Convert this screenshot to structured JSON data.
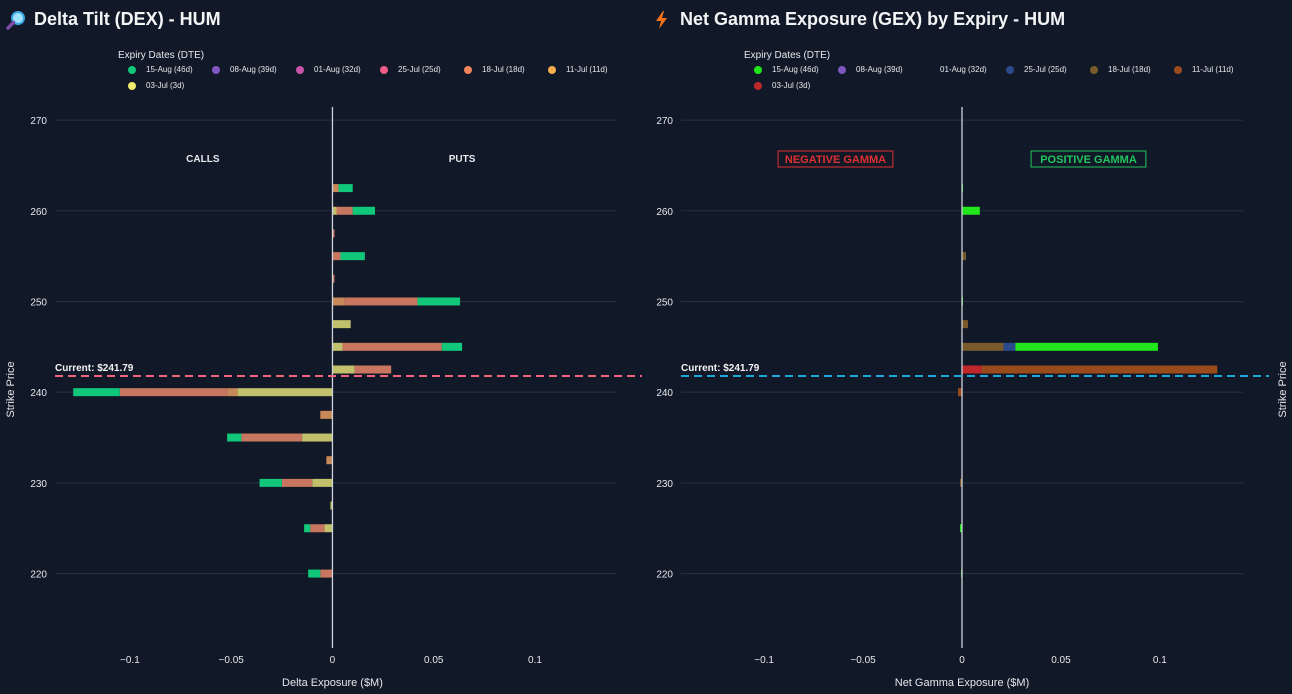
{
  "left_panel": {
    "title": "Delta Tilt (DEX) - HUM",
    "icon": "magnifier-icon",
    "legend_title": "Expiry Dates (DTE)",
    "legend": [
      {
        "label": "15-Aug (46d)",
        "color": "#10c77a"
      },
      {
        "label": "08-Aug (39d)",
        "color": "#7e57c2"
      },
      {
        "label": "01-Aug (32d)",
        "color": "#c855a8"
      },
      {
        "label": "25-Jul (25d)",
        "color": "#ef5d85"
      },
      {
        "label": "18-Jul (18d)",
        "color": "#f0845d"
      },
      {
        "label": "11-Jul (11d)",
        "color": "#f5b04e"
      },
      {
        "label": "03-Jul (3d)",
        "color": "#f2ec6c"
      }
    ],
    "left_annotation": "CALLS",
    "right_annotation": "PUTS",
    "current_label": "Current: $241.79",
    "current_line_color": "#f06480"
  },
  "right_panel": {
    "title": "Net Gamma Exposure (GEX) by Expiry - HUM",
    "icon": "lightning-icon",
    "legend_title": "Expiry Dates (DTE)",
    "legend": [
      {
        "label": "15-Aug (46d)",
        "color": "#22e61c"
      },
      {
        "label": "08-Aug (39d)",
        "color": "#7e57c2"
      },
      {
        "label": "01-Aug (32d)",
        "color": "#111827"
      },
      {
        "label": "25-Jul (25d)",
        "color": "#2b4a8c"
      },
      {
        "label": "18-Jul (18d)",
        "color": "#7a5a2a"
      },
      {
        "label": "11-Jul (11d)",
        "color": "#9a4b1c"
      },
      {
        "label": "03-Jul (3d)",
        "color": "#c0272d"
      }
    ],
    "left_annotation": "NEGATIVE GAMMA",
    "right_annotation": "POSITIVE GAMMA",
    "current_label": "Current: $241.79",
    "current_line_color": "#1fa8e0"
  },
  "chart_data": [
    {
      "type": "bar",
      "orientation": "horizontal",
      "stacked": true,
      "title": "Delta Tilt (DEX) - HUM",
      "xlabel": "Delta Exposure ($M)",
      "ylabel": "Strike Price",
      "xlim": [
        -0.137,
        0.14
      ],
      "ylim": [
        214,
        271
      ],
      "xticks": [
        -0.1,
        -0.05,
        0,
        0.05,
        0.1
      ],
      "xtick_labels": [
        "−0.1",
        "−0.05",
        "0",
        "0.05",
        "0.1"
      ],
      "yticks": [
        220,
        230,
        240,
        250,
        260,
        270
      ],
      "current_price": 241.79,
      "grid": true,
      "legend_position": "top-left",
      "segments": [
        {
          "strike": 262.5,
          "parts": [
            {
              "v": 0.003,
              "c": "#c98858"
            },
            {
              "v": 0.007,
              "c": "#10c77a"
            }
          ]
        },
        {
          "strike": 260,
          "parts": [
            {
              "v": 0.002,
              "c": "#c2c06a"
            },
            {
              "v": 0.008,
              "c": "#c8765f"
            },
            {
              "v": 0.011,
              "c": "#10c77a"
            }
          ]
        },
        {
          "strike": 257.5,
          "parts": [
            {
              "v": 0.001,
              "c": "#c8765f"
            }
          ]
        },
        {
          "strike": 255,
          "parts": [
            {
              "v": 0.004,
              "c": "#c8765f"
            },
            {
              "v": 0.012,
              "c": "#10c77a"
            }
          ]
        },
        {
          "strike": 252.5,
          "parts": [
            {
              "v": 0.001,
              "c": "#c8765f"
            }
          ]
        },
        {
          "strike": 250,
          "parts": [
            {
              "v": 0.006,
              "c": "#c98858"
            },
            {
              "v": 0.036,
              "c": "#c8765f"
            },
            {
              "v": 0.021,
              "c": "#10c77a"
            }
          ]
        },
        {
          "strike": 247.5,
          "parts": [
            {
              "v": 0.009,
              "c": "#c2c06a"
            }
          ]
        },
        {
          "strike": 245,
          "parts": [
            {
              "v": 0.005,
              "c": "#c2c06a"
            },
            {
              "v": 0.049,
              "c": "#c8765f"
            },
            {
              "v": 0.01,
              "c": "#10c77a"
            }
          ]
        },
        {
          "strike": 242.5,
          "parts": [
            {
              "v": 0.011,
              "c": "#c2c06a"
            },
            {
              "v": 0.018,
              "c": "#c8765f"
            }
          ]
        },
        {
          "strike": 240,
          "parts": [
            {
              "v": -0.047,
              "c": "#c2c06a"
            },
            {
              "v": -0.005,
              "c": "#c98858"
            },
            {
              "v": -0.053,
              "c": "#c8765f"
            },
            {
              "v": -0.023,
              "c": "#10c77a"
            }
          ]
        },
        {
          "strike": 237.5,
          "parts": [
            {
              "v": -0.006,
              "c": "#c98858"
            }
          ]
        },
        {
          "strike": 235,
          "parts": [
            {
              "v": -0.015,
              "c": "#c2c06a"
            },
            {
              "v": -0.03,
              "c": "#c8765f"
            },
            {
              "v": -0.007,
              "c": "#10c77a"
            }
          ]
        },
        {
          "strike": 232.5,
          "parts": [
            {
              "v": -0.003,
              "c": "#c98858"
            }
          ]
        },
        {
          "strike": 230,
          "parts": [
            {
              "v": -0.01,
              "c": "#c2c06a"
            },
            {
              "v": -0.015,
              "c": "#c8765f"
            },
            {
              "v": -0.011,
              "c": "#10c77a"
            }
          ]
        },
        {
          "strike": 227.5,
          "parts": [
            {
              "v": -0.001,
              "c": "#c2c06a"
            }
          ]
        },
        {
          "strike": 225,
          "parts": [
            {
              "v": -0.004,
              "c": "#c2c06a"
            },
            {
              "v": -0.007,
              "c": "#c8765f"
            },
            {
              "v": -0.003,
              "c": "#10c77a"
            }
          ]
        },
        {
          "strike": 220,
          "parts": [
            {
              "v": -0.006,
              "c": "#c8765f"
            },
            {
              "v": -0.006,
              "c": "#10c77a"
            }
          ]
        }
      ]
    },
    {
      "type": "bar",
      "orientation": "horizontal",
      "stacked": true,
      "title": "Net Gamma Exposure (GEX) by Expiry - HUM",
      "xlabel": "Net Gamma Exposure ($M)",
      "ylabel": "Strike Price",
      "xlim": [
        -0.142,
        0.142
      ],
      "ylim": [
        214,
        271
      ],
      "xticks": [
        -0.1,
        -0.05,
        0,
        0.05,
        0.1
      ],
      "xtick_labels": [
        "−0.1",
        "−0.05",
        "0",
        "0.05",
        "0.1"
      ],
      "yticks": [
        220,
        230,
        240,
        250,
        260,
        270
      ],
      "current_price": 241.79,
      "grid": true,
      "legend_position": "top-left",
      "segments": [
        {
          "strike": 262.5,
          "parts": [
            {
              "v": 0.0005,
              "c": "#22e61c"
            }
          ]
        },
        {
          "strike": 260,
          "parts": [
            {
              "v": 0.009,
              "c": "#22e61c"
            }
          ]
        },
        {
          "strike": 255,
          "parts": [
            {
              "v": 0.002,
              "c": "#7a5a2a"
            }
          ]
        },
        {
          "strike": 250,
          "parts": [
            {
              "v": 0.0005,
              "c": "#22e61c"
            }
          ]
        },
        {
          "strike": 247.5,
          "parts": [
            {
              "v": 0.003,
              "c": "#7a5a2a"
            }
          ]
        },
        {
          "strike": 245,
          "parts": [
            {
              "v": 0.021,
              "c": "#7a5a2a"
            },
            {
              "v": 0.006,
              "c": "#2b4a8c"
            },
            {
              "v": 0.072,
              "c": "#22e61c"
            }
          ]
        },
        {
          "strike": 242.5,
          "parts": [
            {
              "v": 0.01,
              "c": "#c0272d"
            },
            {
              "v": 0.119,
              "c": "#9a4b1c"
            }
          ]
        },
        {
          "strike": 240,
          "parts": [
            {
              "v": -0.002,
              "c": "#9a4b1c"
            }
          ]
        },
        {
          "strike": 230,
          "parts": [
            {
              "v": -0.001,
              "c": "#7a5a2a"
            }
          ]
        },
        {
          "strike": 225,
          "parts": [
            {
              "v": -0.001,
              "c": "#22e61c"
            }
          ]
        },
        {
          "strike": 220,
          "parts": [
            {
              "v": -0.0005,
              "c": "#22e61c"
            }
          ]
        }
      ]
    }
  ]
}
